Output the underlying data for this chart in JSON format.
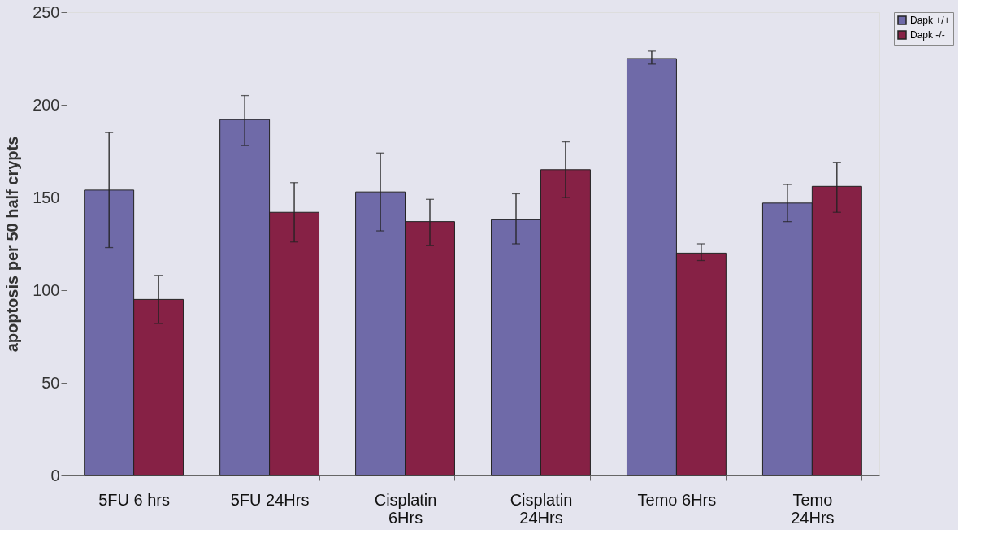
{
  "chart_data": {
    "type": "bar",
    "ylabel": "apoptosis per 50 half crypts",
    "categories": [
      "5FU 6 hrs",
      "5FU 24Hrs",
      "Cisplatin 6Hrs",
      "Cisplatin 24Hrs",
      "Temo 6Hrs",
      "Temo 24Hrs"
    ],
    "series": [
      {
        "name": "Dapk +/+",
        "color": "#6f6aa8",
        "values": [
          154,
          192,
          153,
          138,
          225,
          147
        ],
        "errors": [
          [
            123,
            185
          ],
          [
            178,
            205
          ],
          [
            132,
            174
          ],
          [
            125,
            152
          ],
          [
            222,
            229
          ],
          [
            137,
            157
          ]
        ]
      },
      {
        "name": "Dapk -/-",
        "color": "#862145",
        "values": [
          95,
          142,
          137,
          165,
          120,
          156
        ],
        "errors": [
          [
            82,
            108
          ],
          [
            126,
            158
          ],
          [
            124,
            149
          ],
          [
            150,
            180
          ],
          [
            116,
            125
          ],
          [
            142,
            169
          ]
        ]
      }
    ],
    "ylim": [
      0,
      250
    ],
    "yticks": [
      0,
      50,
      100,
      150,
      200,
      250
    ],
    "grid": false,
    "legend": "right"
  }
}
